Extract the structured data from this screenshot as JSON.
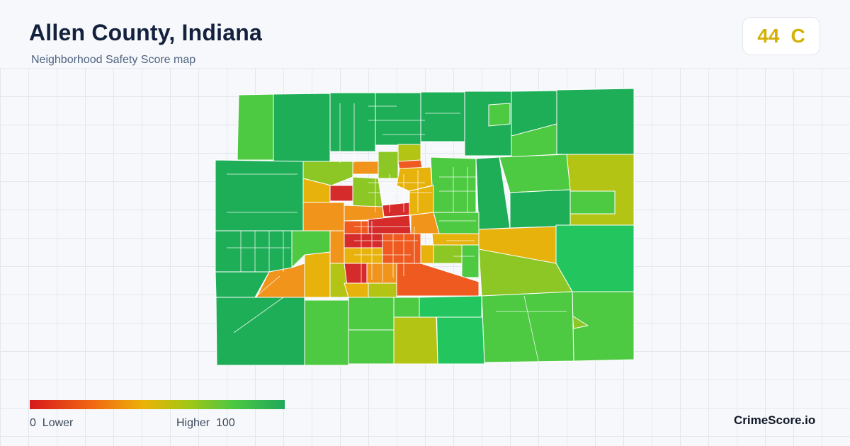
{
  "header": {
    "title": "Allen County, Indiana",
    "subtitle": "Neighborhood Safety Score map"
  },
  "score_badge": {
    "score": "44",
    "grade": "C",
    "color": "#d4b106"
  },
  "legend": {
    "low_value": "0",
    "low_label": "Lower",
    "high_label": "Higher",
    "high_value": "100",
    "colors": [
      "#d7191c",
      "#f16913",
      "#eab308",
      "#a3c614",
      "#4cc742",
      "#1fa85a"
    ]
  },
  "brand": {
    "name": "CrimeScore.io"
  },
  "map": {
    "region": "Allen County, Indiana",
    "metric": "Neighborhood Safety Score",
    "fill_colors": {
      "lowest": "#d62b2b",
      "low": "#ee5a1f",
      "below_avg": "#f0941c",
      "mid": "#e8b20c",
      "above_mid": "#b3c415",
      "good": "#8cc726",
      "high": "#4ec942",
      "very_high": "#22c55e",
      "highest": "#1fae58"
    }
  }
}
